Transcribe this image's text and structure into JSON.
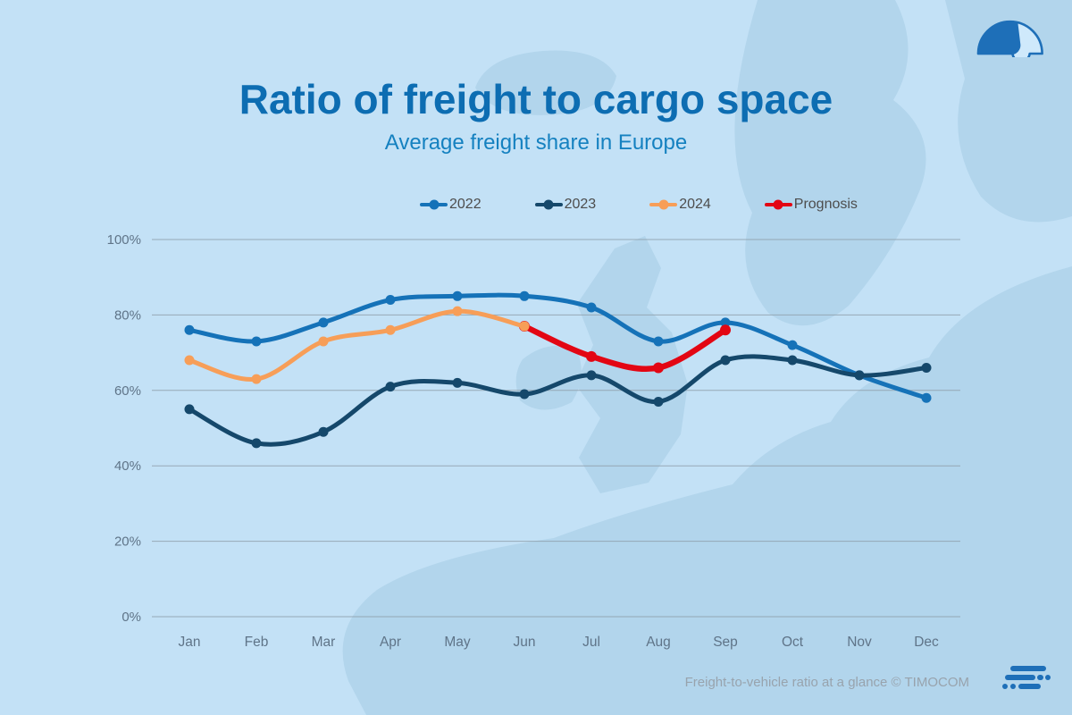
{
  "header": {
    "title": "Ratio of freight to cargo space",
    "subtitle": "Average freight share in Europe"
  },
  "footer": {
    "caption": "Freight-to-vehicle ratio at a glance © TIMOCOM"
  },
  "icons": {
    "top_right": "gauge-icon",
    "bottom_right": "timocom-brand-mark"
  },
  "colors": {
    "background": "#c3e1f6",
    "map_silhouette": "#b2d5ec",
    "title": "#0d6db2",
    "subtitle": "#1581c0",
    "axis_text": "#5f7488",
    "grid_line": "#8fa0ac",
    "legend_text": "#4d4d4d",
    "footer_text": "#98a3ad",
    "logo_blue": "#1e6fb8"
  },
  "chart_data": {
    "type": "line",
    "title": "Ratio of freight to cargo space",
    "subtitle": "Average freight share in Europe",
    "categories": [
      "Jan",
      "Feb",
      "Mar",
      "Apr",
      "May",
      "Jun",
      "Jul",
      "Aug",
      "Sep",
      "Oct",
      "Nov",
      "Dec"
    ],
    "xlabel": "",
    "ylabel": "",
    "ylim": [
      0,
      100
    ],
    "yticks": [
      0,
      20,
      40,
      60,
      80,
      100
    ],
    "ytick_suffix": "%",
    "grid": true,
    "legend_position": "top",
    "series": [
      {
        "name": "2022",
        "color": "#1572b8",
        "width": 5,
        "dot_radius": 5.5,
        "z": 1,
        "values": [
          76,
          73,
          78,
          84,
          85,
          85,
          82,
          73,
          78,
          72,
          64,
          58
        ]
      },
      {
        "name": "2023",
        "color": "#15486b",
        "width": 5,
        "dot_radius": 5.5,
        "z": 2,
        "values": [
          55,
          46,
          49,
          61,
          62,
          59,
          64,
          57,
          68,
          68,
          64,
          66
        ]
      },
      {
        "name": "2024",
        "color": "#f79e58",
        "width": 5,
        "dot_radius": 5.5,
        "z": 4,
        "values": [
          68,
          63,
          73,
          76,
          81,
          77,
          null,
          null,
          null,
          null,
          null,
          null
        ]
      },
      {
        "name": "Prognosis",
        "color": "#e30613",
        "width": 6.5,
        "dot_radius": 6,
        "z": 3,
        "values": [
          null,
          null,
          null,
          null,
          null,
          77,
          69,
          66,
          76,
          null,
          null,
          null
        ]
      }
    ]
  }
}
